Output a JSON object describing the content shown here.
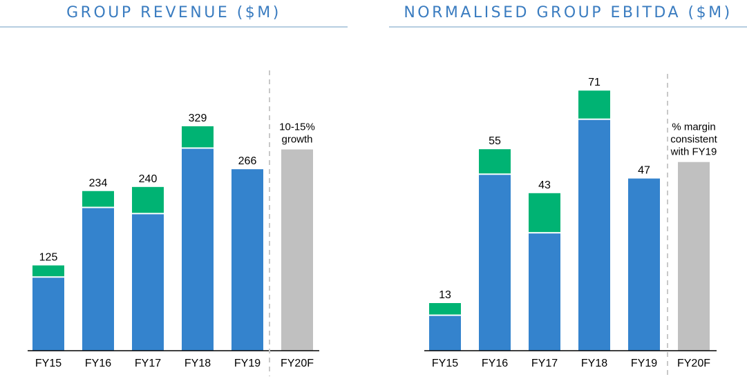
{
  "colors": {
    "base": "#3483cd",
    "top": "#00b373",
    "forecast": "#c0c0c0",
    "title": "#3a7cc0"
  },
  "chart_data": [
    {
      "type": "bar",
      "stacked": true,
      "title": "GROUP REVENUE ($M)",
      "categories": [
        "FY15",
        "FY16",
        "FY17",
        "FY18",
        "FY19",
        "FY20F"
      ],
      "totals": [
        125,
        234,
        240,
        329,
        266,
        null
      ],
      "total_labels": [
        "125",
        "234",
        "240",
        "329",
        "266",
        ""
      ],
      "series": [
        {
          "values": [
            107,
            209,
            200,
            296,
            266,
            null
          ]
        },
        {
          "values": [
            18,
            25,
            40,
            33,
            0,
            null
          ]
        }
      ],
      "forecast_value": 295,
      "forecast_annotation": [
        "10-15%",
        "growth"
      ],
      "ylim": [
        0,
        340
      ],
      "grid": false
    },
    {
      "type": "bar",
      "stacked": true,
      "title": "NORMALISED GROUP EBITDA ($M)",
      "categories": [
        "FY15",
        "FY16",
        "FY17",
        "FY18",
        "FY19",
        "FY20F"
      ],
      "totals": [
        13,
        55,
        43,
        71,
        47,
        null
      ],
      "total_labels": [
        "13",
        "55",
        "43",
        "71",
        "47",
        ""
      ],
      "series": [
        {
          "values": [
            9.5,
            48,
            32,
            63,
            47,
            null
          ]
        },
        {
          "values": [
            3.5,
            7,
            11,
            8,
            0,
            null
          ]
        }
      ],
      "forecast_value": 51.5,
      "forecast_annotation": [
        "% margin",
        "consistent",
        "with FY19"
      ],
      "ylim": [
        0,
        75
      ],
      "grid": false
    }
  ]
}
